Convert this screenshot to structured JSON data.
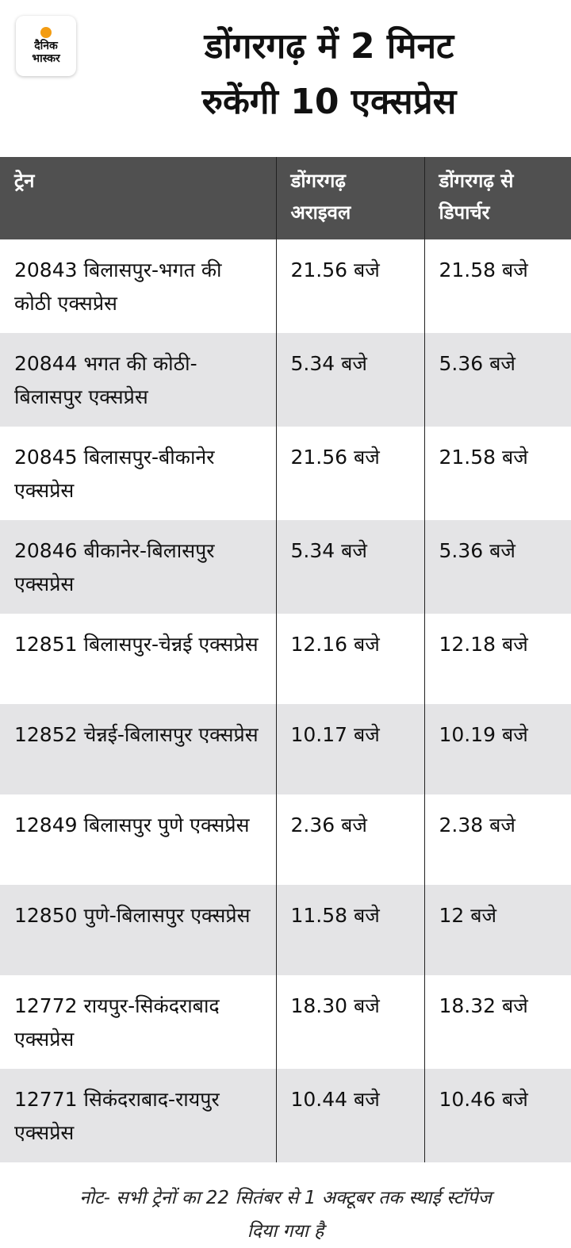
{
  "logo": {
    "line1": "दैनिक",
    "line2": "भास्कर"
  },
  "title": {
    "line1": "डोंगरगढ़ में 2 मिनट",
    "line2": "रुकेंगी 10 एक्सप्रेस"
  },
  "table": {
    "headers": [
      "ट्रेन",
      "डोंगरगढ़ अराइवल",
      "डोंगरगढ़ से डिपार्चर"
    ],
    "rows": [
      {
        "train": "20843 बिलासपुर-भगत की कोठी एक्सप्रेस",
        "arrival": "21.56 बजे",
        "departure": "21.58 बजे"
      },
      {
        "train": "20844 भगत की कोठी-बिलासपुर एक्सप्रेस",
        "arrival": "5.34 बजे",
        "departure": "5.36 बजे"
      },
      {
        "train": "20845 बिलासपुर-बीकानेर एक्सप्रेस",
        "arrival": "21.56 बजे",
        "departure": "21.58 बजे"
      },
      {
        "train": "20846 बीकानेर-बिलासपुर एक्सप्रेस",
        "arrival": "5.34 बजे",
        "departure": "5.36 बजे"
      },
      {
        "train": "12851 बिलासपुर-चेन्नई एक्सप्रेस",
        "arrival": "12.16 बजे",
        "departure": "12.18 बजे"
      },
      {
        "train": "12852 चेन्नई-बिलासपुर एक्सप्रेस",
        "arrival": "10.17 बजे",
        "departure": "10.19 बजे"
      },
      {
        "train": "12849 बिलासपुर पुणे एक्सप्रेस",
        "arrival": "2.36 बजे",
        "departure": "2.38 बजे"
      },
      {
        "train": "12850 पुणे-बिलासपुर एक्सप्रेस",
        "arrival": "11.58 बजे",
        "departure": "12 बजे"
      },
      {
        "train": "12772 रायपुर-सिकंदराबाद एक्सप्रेस",
        "arrival": "18.30 बजे",
        "departure": "18.32 बजे"
      },
      {
        "train": "12771 सिकंदराबाद-रायपुर एक्सप्रेस",
        "arrival": "10.44 बजे",
        "departure": "10.46 बजे"
      }
    ]
  },
  "note": "नोट- सभी ट्रेनों का 22 सितंबर से 1 अक्टूबर तक स्थाई स्टॉपेज दिया गया है",
  "colors": {
    "header_bg": "#505050",
    "stripe_bg": "#e4e4e6",
    "logo_dot": "#f39c12"
  }
}
